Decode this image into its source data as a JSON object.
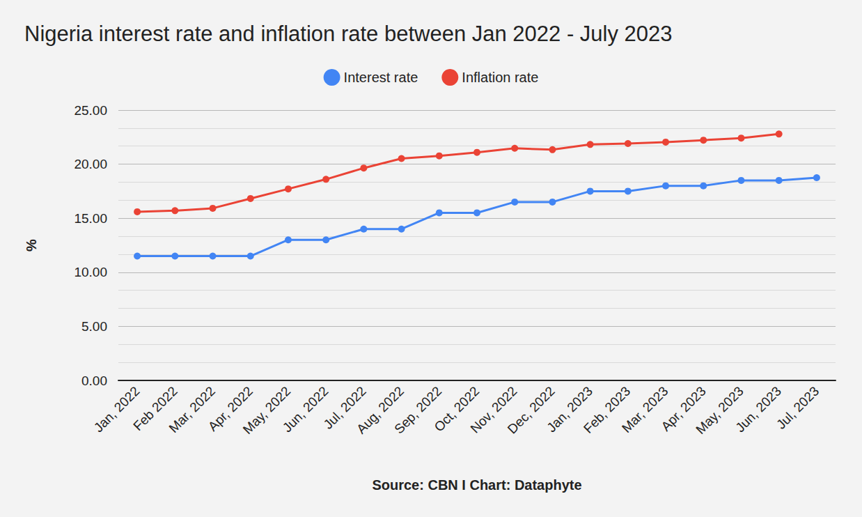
{
  "chart_data": {
    "type": "line",
    "title": "Nigeria interest rate and inflation rate between Jan 2022 - July 2023",
    "xlabel": "Source: CBN I Chart: Dataphyte",
    "ylabel": "%",
    "categories": [
      "Jan, 2022",
      "Feb 2022",
      "Mar, 2022",
      "Apr, 2022",
      "May, 2022",
      "Jun, 2022",
      "Jul, 2022",
      "Aug, 2022",
      "Sep, 2022",
      "Oct, 2022",
      "Nov, 2022",
      "Dec, 2022",
      "Jan, 2023",
      "Feb, 2023",
      "Mar, 2023",
      "Apr, 2023",
      "May, 2023",
      "Jun, 2023",
      "Jul, 2023"
    ],
    "series": [
      {
        "name": "Interest rate",
        "color": "#4285f4",
        "marker": "circle",
        "values": [
          11.5,
          11.5,
          11.5,
          11.5,
          13,
          13,
          14,
          14,
          15.5,
          15.5,
          16.5,
          16.5,
          17.5,
          17.5,
          18,
          18,
          18.5,
          18.5,
          18.75
        ]
      },
      {
        "name": "Inflation rate",
        "color": "#ea4335",
        "marker": "circle",
        "values": [
          15.6,
          15.7,
          15.92,
          16.82,
          17.71,
          18.6,
          19.64,
          20.52,
          20.77,
          21.09,
          21.47,
          21.34,
          21.82,
          21.91,
          22.04,
          22.22,
          22.41,
          22.79,
          null
        ]
      }
    ],
    "ylim": [
      0,
      25
    ],
    "yticks": [
      {
        "value": 0,
        "label": "0.00"
      },
      {
        "value": 5,
        "label": "5.00"
      },
      {
        "value": 10,
        "label": "10.00"
      },
      {
        "value": 15,
        "label": "15.00"
      },
      {
        "value": 20,
        "label": "20.00"
      },
      {
        "value": 25,
        "label": "25.00"
      }
    ],
    "grid": true,
    "legend": "top"
  }
}
